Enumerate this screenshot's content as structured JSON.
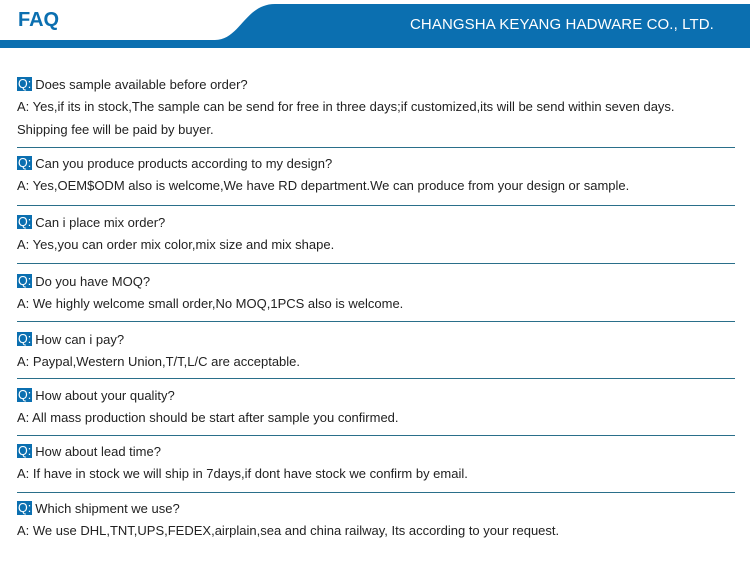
{
  "header": {
    "title": "FAQ",
    "company": "CHANGSHA KEYANG HADWARE CO., LTD.",
    "brand_color": "#0b6fb0"
  },
  "q_badge": "Q:",
  "faq": [
    {
      "q": "Does sample available before order?",
      "a": [
        "A: Yes,if its in stock,The sample can be send for free in three days;if customized,its will be send within seven days.",
        "Shipping fee will be paid by buyer."
      ]
    },
    {
      "q": "Can you produce products according to my design?",
      "a": [
        "A: Yes,OEM$ODM also is welcome,We have RD department.We can produce from your design or sample."
      ]
    },
    {
      "q": "Can i place mix order?",
      "a": [
        "A: Yes,you can order mix color,mix size and mix shape."
      ]
    },
    {
      "q": "Do you have MOQ?",
      "a": [
        "A: We highly welcome small order,No MOQ,1PCS also is welcome."
      ]
    },
    {
      "q": "How can i pay?",
      "a": [
        "A: Paypal,Western Union,T/T,L/C are acceptable."
      ]
    },
    {
      "q": "How about your quality?",
      "a": [
        "A: All mass production should be start after sample you confirmed."
      ]
    },
    {
      "q": "How about lead time?",
      "a": [
        "A: If have in stock we will ship in 7days,if dont have stock we confirm by email."
      ]
    },
    {
      "q": "Which shipment we use?",
      "a": [
        "A: We use DHL,TNT,UPS,FEDEX,airplain,sea and china railway, Its according to your request."
      ]
    }
  ]
}
